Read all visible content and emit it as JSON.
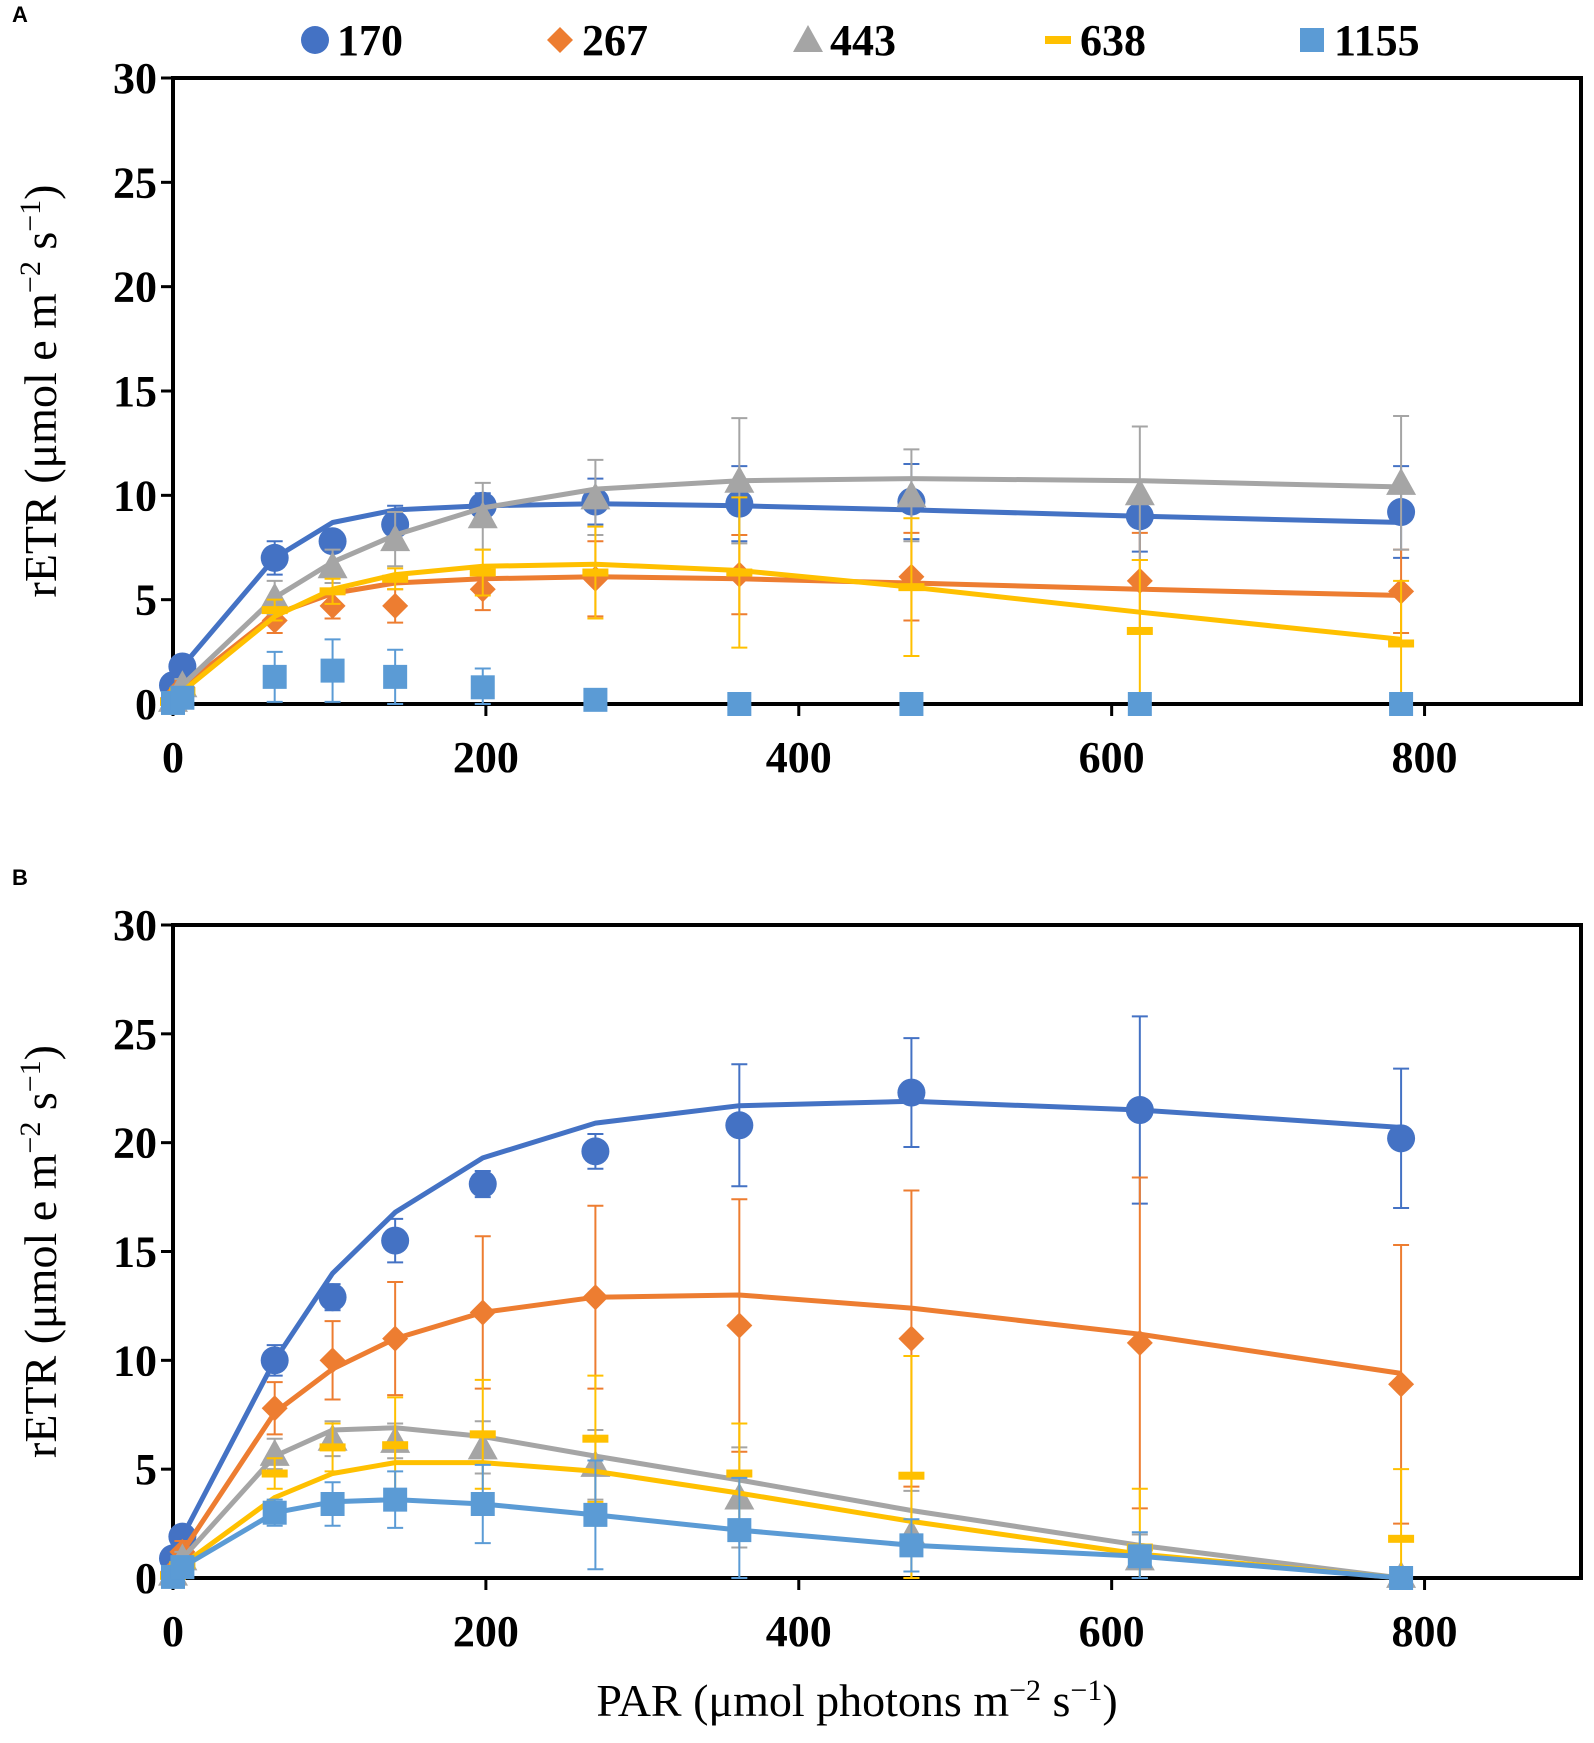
{
  "legend": {
    "items": [
      {
        "label": "170",
        "marker": "circle",
        "color": "#4472C4"
      },
      {
        "label": "267",
        "marker": "diamond",
        "color": "#ED7D31"
      },
      {
        "label": "443",
        "marker": "triangle",
        "color": "#A5A5A5"
      },
      {
        "label": "638",
        "marker": "dash",
        "color": "#FFC000"
      },
      {
        "label": "1155",
        "marker": "square",
        "color": "#5B9BD5"
      }
    ]
  },
  "chart_data": [
    {
      "panel": "A",
      "type": "scatter",
      "ylabel_main": "rETR (μmol e m",
      "ylabel_sup1": "−2",
      "ylabel_mid": " s",
      "ylabel_sup2": "−1",
      "ylabel_end": ")",
      "xlim": [
        0,
        900
      ],
      "ylim": [
        0,
        30
      ],
      "xticks": [
        0,
        200,
        400,
        600,
        800
      ],
      "yticks": [
        0,
        5,
        10,
        15,
        20,
        25,
        30
      ],
      "series": [
        {
          "name": "170",
          "color": "#4472C4",
          "marker": "circle",
          "points": [
            [
              0,
              0.9,
              0.3
            ],
            [
              6,
              1.8,
              0.4
            ],
            [
              65,
              7.0,
              0.8
            ],
            [
              102,
              7.8,
              0.5
            ],
            [
              142,
              8.6,
              0.9
            ],
            [
              198,
              9.5,
              0.6
            ],
            [
              270,
              9.7,
              1.1
            ],
            [
              362,
              9.6,
              1.8
            ],
            [
              472,
              9.7,
              1.8
            ],
            [
              618,
              9.0,
              1.7
            ],
            [
              785,
              9.2,
              2.2
            ]
          ],
          "fit": [
            [
              0,
              0.9
            ],
            [
              6,
              1.8
            ],
            [
              65,
              7.0
            ],
            [
              102,
              8.7
            ],
            [
              142,
              9.3
            ],
            [
              198,
              9.5
            ],
            [
              270,
              9.6
            ],
            [
              362,
              9.5
            ],
            [
              472,
              9.3
            ],
            [
              618,
              9.0
            ],
            [
              785,
              8.7
            ]
          ]
        },
        {
          "name": "267",
          "color": "#ED7D31",
          "marker": "diamond",
          "points": [
            [
              0,
              0.3,
              0.2
            ],
            [
              6,
              0.8,
              0.3
            ],
            [
              65,
              4.0,
              0.6
            ],
            [
              102,
              4.7,
              0.6
            ],
            [
              142,
              4.7,
              0.8
            ],
            [
              198,
              5.5,
              1.0
            ],
            [
              270,
              6.0,
              1.8
            ],
            [
              362,
              6.2,
              1.9
            ],
            [
              472,
              6.1,
              2.1
            ],
            [
              618,
              5.9,
              2.3
            ],
            [
              785,
              5.4,
              2.0
            ]
          ],
          "fit": [
            [
              0,
              0.3
            ],
            [
              6,
              0.8
            ],
            [
              65,
              4.3
            ],
            [
              102,
              5.3
            ],
            [
              142,
              5.8
            ],
            [
              198,
              6.0
            ],
            [
              270,
              6.1
            ],
            [
              362,
              6.0
            ],
            [
              472,
              5.8
            ],
            [
              618,
              5.5
            ],
            [
              785,
              5.2
            ]
          ]
        },
        {
          "name": "443",
          "color": "#A5A5A5",
          "marker": "triangle",
          "points": [
            [
              0,
              0.2,
              0.2
            ],
            [
              6,
              0.9,
              0.3
            ],
            [
              65,
              5.1,
              0.8
            ],
            [
              102,
              6.6,
              0.8
            ],
            [
              142,
              7.9,
              1.3
            ],
            [
              198,
              9.0,
              1.6
            ],
            [
              270,
              9.9,
              1.8
            ],
            [
              362,
              10.7,
              3.0
            ],
            [
              472,
              10.0,
              2.2
            ],
            [
              618,
              10.1,
              3.2
            ],
            [
              785,
              10.6,
              3.2
            ]
          ],
          "fit": [
            [
              0,
              0.2
            ],
            [
              6,
              0.9
            ],
            [
              65,
              5.1
            ],
            [
              102,
              6.8
            ],
            [
              142,
              8.1
            ],
            [
              198,
              9.4
            ],
            [
              270,
              10.3
            ],
            [
              362,
              10.7
            ],
            [
              472,
              10.8
            ],
            [
              618,
              10.7
            ],
            [
              785,
              10.4
            ]
          ]
        },
        {
          "name": "638",
          "color": "#FFC000",
          "marker": "dash",
          "points": [
            [
              0,
              0.1,
              0.1
            ],
            [
              6,
              0.6,
              0.2
            ],
            [
              65,
              4.5,
              0.5
            ],
            [
              102,
              5.4,
              0.6
            ],
            [
              142,
              6.0,
              0.5
            ],
            [
              198,
              6.3,
              1.1
            ],
            [
              270,
              6.3,
              2.2
            ],
            [
              362,
              6.3,
              3.6
            ],
            [
              472,
              5.6,
              3.3
            ],
            [
              618,
              3.5,
              3.4
            ],
            [
              785,
              2.9,
              3.0
            ]
          ],
          "fit": [
            [
              0,
              0.1
            ],
            [
              6,
              0.6
            ],
            [
              65,
              4.2
            ],
            [
              102,
              5.5
            ],
            [
              142,
              6.2
            ],
            [
              198,
              6.6
            ],
            [
              270,
              6.7
            ],
            [
              362,
              6.4
            ],
            [
              472,
              5.6
            ],
            [
              618,
              4.4
            ],
            [
              785,
              3.1
            ]
          ]
        },
        {
          "name": "1155",
          "color": "#5B9BD5",
          "marker": "square",
          "points": [
            [
              0,
              0.05,
              0.05
            ],
            [
              6,
              0.3,
              0.1
            ],
            [
              65,
              1.3,
              1.2
            ],
            [
              102,
              1.6,
              1.5
            ],
            [
              142,
              1.3,
              1.3
            ],
            [
              198,
              0.8,
              0.9
            ],
            [
              270,
              0.2,
              0.2
            ],
            [
              362,
              0.0,
              0.05
            ],
            [
              472,
              0.0,
              0.05
            ],
            [
              618,
              0.0,
              0.05
            ],
            [
              785,
              0.0,
              0.05
            ]
          ],
          "fit": []
        }
      ]
    },
    {
      "panel": "B",
      "type": "scatter",
      "xlabel_main": "PAR (μmol photons m",
      "xlabel_sup1": "−2",
      "xlabel_mid": " s",
      "xlabel_sup2": "−1",
      "xlabel_end": ")",
      "ylabel_main": "rETR (μmol e m",
      "ylabel_sup1": "−2",
      "ylabel_mid": " s",
      "ylabel_sup2": "−1",
      "ylabel_end": ")",
      "xlim": [
        0,
        900
      ],
      "ylim": [
        0,
        30
      ],
      "xticks": [
        0,
        200,
        400,
        600,
        800
      ],
      "yticks": [
        0,
        5,
        10,
        15,
        20,
        25,
        30
      ],
      "series": [
        {
          "name": "170",
          "color": "#4472C4",
          "marker": "circle",
          "points": [
            [
              0,
              0.9,
              0.4
            ],
            [
              6,
              1.9,
              0.5
            ],
            [
              65,
              10.0,
              0.7
            ],
            [
              102,
              12.9,
              0.6
            ],
            [
              142,
              15.5,
              1.0
            ],
            [
              198,
              18.1,
              0.6
            ],
            [
              270,
              19.6,
              0.8
            ],
            [
              362,
              20.8,
              2.8
            ],
            [
              472,
              22.3,
              2.5
            ],
            [
              618,
              21.5,
              4.3
            ],
            [
              785,
              20.2,
              3.2
            ]
          ],
          "fit": [
            [
              0,
              0.9
            ],
            [
              6,
              1.9
            ],
            [
              65,
              10.0
            ],
            [
              102,
              14.0
            ],
            [
              142,
              16.8
            ],
            [
              198,
              19.3
            ],
            [
              270,
              20.9
            ],
            [
              362,
              21.7
            ],
            [
              472,
              21.9
            ],
            [
              618,
              21.5
            ],
            [
              785,
              20.7
            ]
          ]
        },
        {
          "name": "267",
          "color": "#ED7D31",
          "marker": "diamond",
          "points": [
            [
              0,
              0.3,
              0.2
            ],
            [
              6,
              1.2,
              0.5
            ],
            [
              65,
              7.8,
              1.2
            ],
            [
              102,
              10.0,
              1.8
            ],
            [
              142,
              11.0,
              2.6
            ],
            [
              198,
              12.2,
              3.5
            ],
            [
              270,
              12.9,
              4.2
            ],
            [
              362,
              11.6,
              5.8
            ],
            [
              472,
              11.0,
              6.8
            ],
            [
              618,
              10.8,
              7.6
            ],
            [
              785,
              8.9,
              6.4
            ]
          ],
          "fit": [
            [
              0,
              0.3
            ],
            [
              6,
              1.2
            ],
            [
              65,
              7.6
            ],
            [
              102,
              9.6
            ],
            [
              142,
              11.0
            ],
            [
              198,
              12.2
            ],
            [
              270,
              12.9
            ],
            [
              362,
              13.0
            ],
            [
              472,
              12.4
            ],
            [
              618,
              11.2
            ],
            [
              785,
              9.4
            ]
          ]
        },
        {
          "name": "443",
          "color": "#A5A5A5",
          "marker": "triangle",
          "points": [
            [
              0,
              0.2,
              0.2
            ],
            [
              6,
              0.9,
              0.3
            ],
            [
              65,
              5.7,
              0.7
            ],
            [
              102,
              6.4,
              0.8
            ],
            [
              142,
              6.3,
              0.8
            ],
            [
              198,
              6.0,
              1.2
            ],
            [
              270,
              5.2,
              1.6
            ],
            [
              362,
              3.7,
              2.3
            ],
            [
              472,
              2.0,
              2.0
            ],
            [
              618,
              0.9,
              1.1
            ],
            [
              785,
              0.1,
              0.1
            ]
          ],
          "fit": [
            [
              0,
              0.2
            ],
            [
              6,
              0.9
            ],
            [
              65,
              5.6
            ],
            [
              102,
              6.8
            ],
            [
              142,
              6.9
            ],
            [
              198,
              6.5
            ],
            [
              270,
              5.6
            ],
            [
              362,
              4.5
            ],
            [
              472,
              3.1
            ],
            [
              618,
              1.5
            ],
            [
              785,
              0.0
            ]
          ]
        },
        {
          "name": "638",
          "color": "#FFC000",
          "marker": "dash",
          "points": [
            [
              0,
              0.1,
              0.1
            ],
            [
              6,
              0.6,
              0.3
            ],
            [
              65,
              4.8,
              0.7
            ],
            [
              102,
              6.0,
              1.1
            ],
            [
              142,
              6.1,
              2.2
            ],
            [
              198,
              6.6,
              2.5
            ],
            [
              270,
              6.4,
              2.9
            ],
            [
              362,
              4.8,
              2.3
            ],
            [
              472,
              4.7,
              5.5
            ],
            [
              618,
              1.4,
              2.7
            ],
            [
              785,
              1.8,
              3.2
            ]
          ],
          "fit": [
            [
              0,
              0.1
            ],
            [
              6,
              0.6
            ],
            [
              65,
              3.7
            ],
            [
              102,
              4.8
            ],
            [
              142,
              5.3
            ],
            [
              198,
              5.3
            ],
            [
              270,
              4.9
            ],
            [
              362,
              3.9
            ],
            [
              472,
              2.6
            ],
            [
              618,
              1.1
            ],
            [
              785,
              0.0
            ]
          ]
        },
        {
          "name": "1155",
          "color": "#5B9BD5",
          "marker": "square",
          "points": [
            [
              0,
              0.05,
              0.05
            ],
            [
              6,
              0.5,
              0.2
            ],
            [
              65,
              3.0,
              0.6
            ],
            [
              102,
              3.4,
              1.0
            ],
            [
              142,
              3.6,
              1.3
            ],
            [
              198,
              3.4,
              1.8
            ],
            [
              270,
              2.9,
              2.5
            ],
            [
              362,
              2.2,
              2.4
            ],
            [
              472,
              1.5,
              1.2
            ],
            [
              618,
              1.0,
              1.1
            ],
            [
              785,
              0.0,
              0.05
            ]
          ],
          "fit": [
            [
              0,
              0.05
            ],
            [
              6,
              0.5
            ],
            [
              65,
              3.0
            ],
            [
              102,
              3.5
            ],
            [
              142,
              3.6
            ],
            [
              198,
              3.4
            ],
            [
              270,
              2.9
            ],
            [
              362,
              2.2
            ],
            [
              472,
              1.5
            ],
            [
              618,
              1.0
            ],
            [
              785,
              0.0
            ]
          ]
        }
      ]
    }
  ]
}
